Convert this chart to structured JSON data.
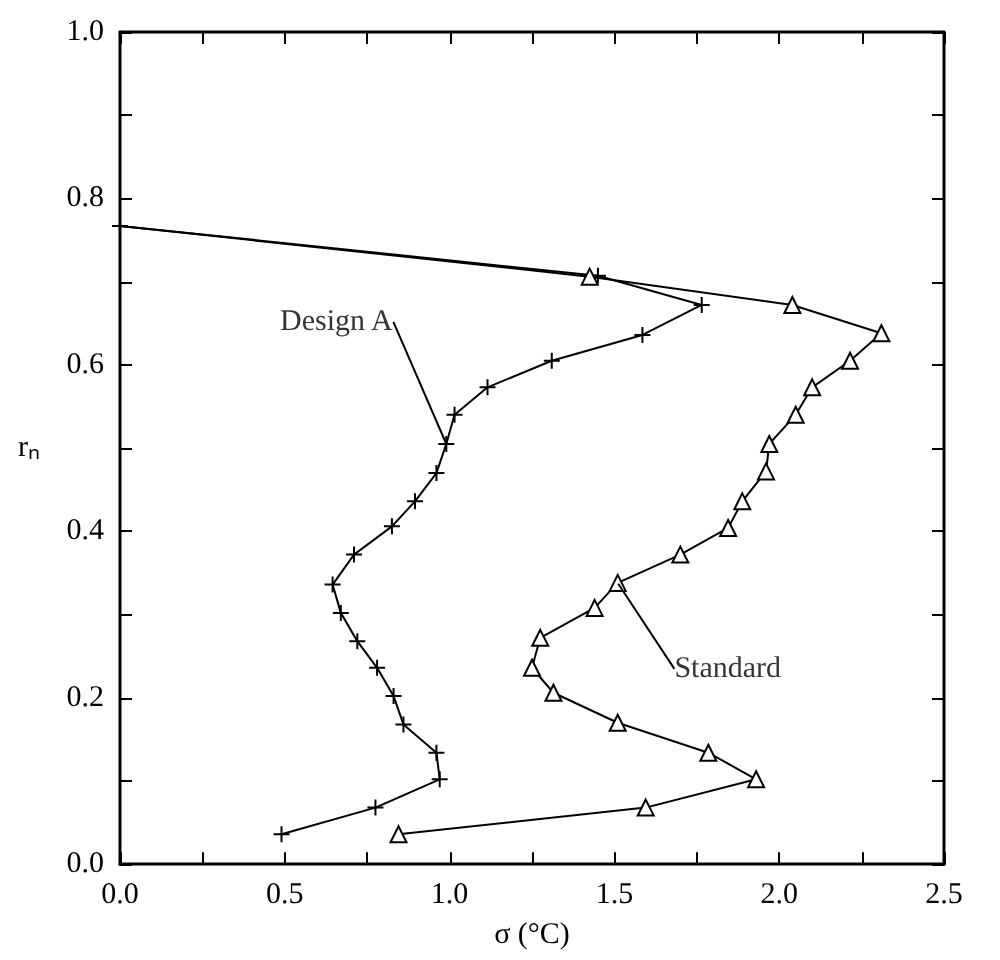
{
  "chart_data": {
    "type": "line",
    "xlabel": "σ (°C)",
    "ylabel": "rₙ",
    "xlim": [
      0,
      2.5
    ],
    "ylim": [
      0,
      1
    ],
    "xticks": [
      {
        "value": 0,
        "label": "0.0"
      },
      {
        "value": 0.25,
        "label": null
      },
      {
        "value": 0.5,
        "label": "0.5"
      },
      {
        "value": 0.75,
        "label": null
      },
      {
        "value": 1,
        "label": "1.0"
      },
      {
        "value": 1.25,
        "label": null
      },
      {
        "value": 1.5,
        "label": "1.5"
      },
      {
        "value": 1.75,
        "label": null
      },
      {
        "value": 2,
        "label": "2.0"
      },
      {
        "value": 2.25,
        "label": null
      },
      {
        "value": 2.5,
        "label": "2.5"
      }
    ],
    "yticks": [
      {
        "value": 0,
        "label": "0.0"
      },
      {
        "value": 0.1,
        "label": null
      },
      {
        "value": 0.2,
        "label": "0.2"
      },
      {
        "value": 0.3,
        "label": null
      },
      {
        "value": 0.4,
        "label": "0.4"
      },
      {
        "value": 0.5,
        "label": null
      },
      {
        "value": 0.6,
        "label": "0.6"
      },
      {
        "value": 0.7,
        "label": null
      },
      {
        "value": 0.8,
        "label": "0.8"
      },
      {
        "value": 0.9,
        "label": null
      },
      {
        "value": 1,
        "label": "1.0"
      }
    ],
    "grid": false,
    "line_style": "solid",
    "series": [
      {
        "color": "#000000",
        "marker": "cross",
        "x": [
          0.49,
          0.775,
          0.97,
          0.96,
          0.86,
          0.83,
          0.78,
          0.72,
          0.67,
          0.645,
          0.71,
          0.825,
          0.895,
          0.96,
          0.99,
          1.015,
          1.115,
          1.31,
          1.585,
          1.765,
          1.45,
          0
        ],
        "values": [
          0.036,
          0.068,
          0.102,
          0.134,
          0.168,
          0.202,
          0.236,
          0.268,
          0.302,
          0.336,
          0.372,
          0.406,
          0.436,
          0.47,
          0.505,
          0.54,
          0.573,
          0.605,
          0.636,
          0.672,
          0.707,
          0.767
        ]
      },
      {
        "color": "#000000",
        "marker": "triangle",
        "x": [
          0.845,
          1.595,
          1.93,
          1.785,
          1.51,
          1.315,
          1.25,
          1.275,
          1.44,
          1.51,
          1.7,
          1.845,
          1.888,
          1.96,
          1.97,
          2.05,
          2.1,
          2.215,
          2.31,
          2.04,
          1.425,
          0
        ],
        "values": [
          0.036,
          0.068,
          0.102,
          0.134,
          0.17,
          0.206,
          0.236,
          0.272,
          0.308,
          0.338,
          0.372,
          0.404,
          0.436,
          0.472,
          0.505,
          0.54,
          0.573,
          0.605,
          0.638,
          0.672,
          0.706,
          0.767
        ]
      }
    ],
    "annotations": [
      {
        "text": "Design A",
        "x": 0.99,
        "y": 0.505
      },
      {
        "text": "Standard",
        "x": 1.51,
        "y": 0.338
      }
    ]
  }
}
